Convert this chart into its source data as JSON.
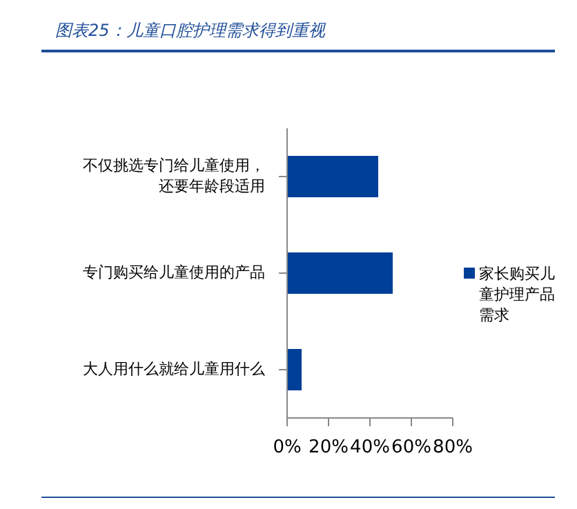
{
  "chart_data": {
    "type": "bar",
    "orientation": "horizontal",
    "title": "图表25：儿童口腔护理需求得到重视",
    "categories": [
      "不仅挑选专门给儿童使用，还要年龄段适用",
      "专门购买给儿童使用的产品",
      "大人用什么就给儿童用什么"
    ],
    "series": [
      {
        "name": "家长购买儿童护理产品需求",
        "color": "#003f98",
        "values": [
          44,
          51,
          7
        ]
      }
    ],
    "xlim": [
      0,
      80
    ],
    "xticks": [
      {
        "value": 0,
        "label": "0%"
      },
      {
        "value": 20,
        "label": "20%"
      },
      {
        "value": 40,
        "label": "40%"
      },
      {
        "value": 60,
        "label": "60%"
      },
      {
        "value": 80,
        "label": "80%"
      }
    ],
    "legend": "right",
    "grid": false
  }
}
